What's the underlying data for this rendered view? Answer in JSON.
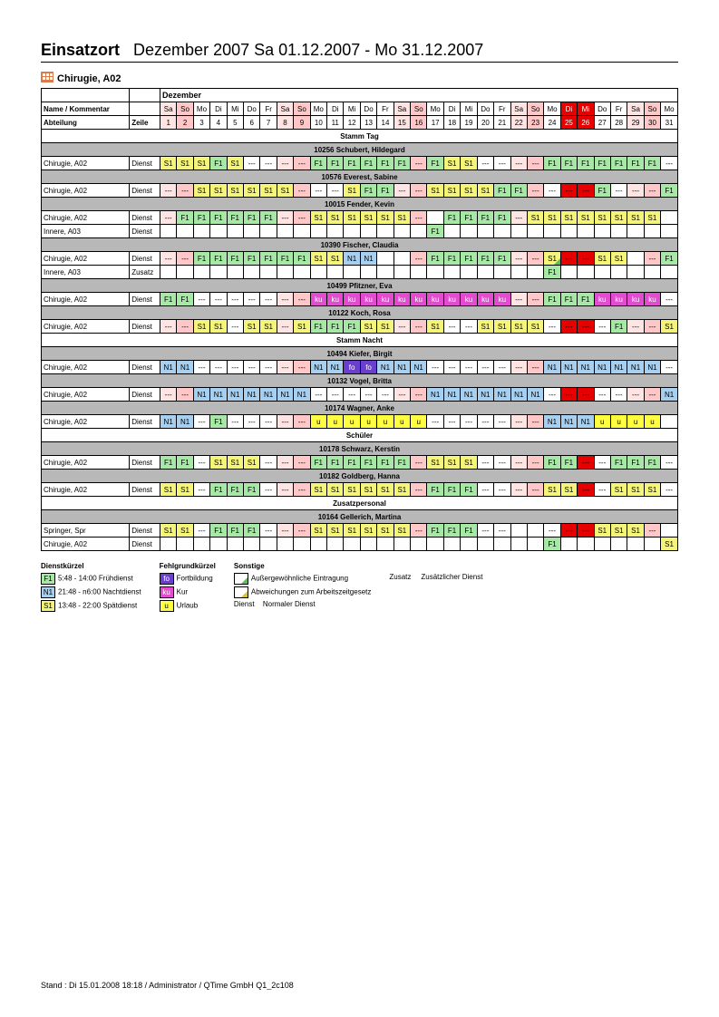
{
  "title_label": "Einsatzort",
  "title_period": "Dezember 2007    Sa 01.12.2007  -  Mo 31.12.2007",
  "department": "Chirugie, A02",
  "header": {
    "name": "Name / Kommentar",
    "abteilung": "Abteilung",
    "zeile": "Zeile",
    "month": "Dezember"
  },
  "days": [
    {
      "wd": "Sa",
      "n": "1",
      "bg": "#ffe4e4"
    },
    {
      "wd": "So",
      "n": "2",
      "bg": "#ffc7c7"
    },
    {
      "wd": "Mo",
      "n": "3",
      "bg": "#fff"
    },
    {
      "wd": "Di",
      "n": "4",
      "bg": "#fff"
    },
    {
      "wd": "Mi",
      "n": "5",
      "bg": "#fff"
    },
    {
      "wd": "Do",
      "n": "6",
      "bg": "#fff"
    },
    {
      "wd": "Fr",
      "n": "7",
      "bg": "#fff"
    },
    {
      "wd": "Sa",
      "n": "8",
      "bg": "#ffe4e4"
    },
    {
      "wd": "So",
      "n": "9",
      "bg": "#ffc7c7"
    },
    {
      "wd": "Mo",
      "n": "10",
      "bg": "#fff"
    },
    {
      "wd": "Di",
      "n": "11",
      "bg": "#fff"
    },
    {
      "wd": "Mi",
      "n": "12",
      "bg": "#fff"
    },
    {
      "wd": "Do",
      "n": "13",
      "bg": "#fff"
    },
    {
      "wd": "Fr",
      "n": "14",
      "bg": "#fff"
    },
    {
      "wd": "Sa",
      "n": "15",
      "bg": "#ffe4e4"
    },
    {
      "wd": "So",
      "n": "16",
      "bg": "#ffc7c7"
    },
    {
      "wd": "Mo",
      "n": "17",
      "bg": "#fff"
    },
    {
      "wd": "Di",
      "n": "18",
      "bg": "#fff"
    },
    {
      "wd": "Mi",
      "n": "19",
      "bg": "#fff"
    },
    {
      "wd": "Do",
      "n": "20",
      "bg": "#fff"
    },
    {
      "wd": "Fr",
      "n": "21",
      "bg": "#fff"
    },
    {
      "wd": "Sa",
      "n": "22",
      "bg": "#ffe4e4"
    },
    {
      "wd": "So",
      "n": "23",
      "bg": "#ffc7c7"
    },
    {
      "wd": "Mo",
      "n": "24",
      "bg": "#fff"
    },
    {
      "wd": "Di",
      "n": "25",
      "bg": "#e60000",
      "fg": "#fff"
    },
    {
      "wd": "Mi",
      "n": "26",
      "bg": "#e60000",
      "fg": "#fff"
    },
    {
      "wd": "Do",
      "n": "27",
      "bg": "#fff"
    },
    {
      "wd": "Fr",
      "n": "28",
      "bg": "#fff"
    },
    {
      "wd": "Sa",
      "n": "29",
      "bg": "#ffe4e4"
    },
    {
      "wd": "So",
      "n": "30",
      "bg": "#ffc7c7"
    },
    {
      "wd": "Mo",
      "n": "31",
      "bg": "#fff"
    }
  ],
  "codes": {
    "F1": {
      "bg": "#a7e8a7"
    },
    "S1": {
      "bg": "#f5f57a"
    },
    "N1": {
      "bg": "#a7cff0"
    },
    "ku": {
      "bg": "#e34bd0",
      "fg": "#fff"
    },
    "fo": {
      "bg": "#6a3fcf",
      "fg": "#fff"
    },
    "u": {
      "bg": "#ffff3f"
    },
    "---": {
      "bg": ""
    },
    "": {
      "bg": ""
    }
  },
  "sections": [
    {
      "title": "Stamm Tag",
      "people": [
        {
          "name": "10256 Schubert, Hildegard",
          "rows": [
            {
              "abt": "Chirugie, A02",
              "zeile": "Dienst",
              "cells": [
                "S1",
                "S1",
                "S1",
                "F1",
                "S1",
                "---",
                "---",
                "---",
                "---",
                "F1",
                "F1",
                "F1",
                "F1",
                "F1",
                "F1",
                "---",
                "F1",
                "S1",
                "S1",
                "---",
                "---",
                "---",
                "---",
                "F1",
                "F1",
                "F1",
                "F1",
                "F1",
                "F1",
                "F1",
                "---"
              ]
            }
          ]
        },
        {
          "name": "10576 Everest, Sabine",
          "rows": [
            {
              "abt": "Chirugie, A02",
              "zeile": "Dienst",
              "cells": [
                "---",
                "---",
                "S1",
                "S1",
                "S1",
                "S1",
                "S1",
                "S1",
                "---",
                "---",
                "---",
                "S1",
                "F1",
                "F1",
                "---",
                "---",
                "S1",
                "S1",
                "S1",
                "S1",
                "F1",
                "F1",
                "---",
                "---",
                "---",
                "---",
                "F1",
                "---",
                "---",
                "---",
                "F1"
              ]
            }
          ]
        },
        {
          "name": "10015 Fender, Kevin",
          "rows": [
            {
              "abt": "Chirugie, A02",
              "zeile": "Dienst",
              "cells": [
                "---",
                "F1",
                "F1",
                "F1",
                "F1",
                "F1",
                "F1",
                "---",
                "---",
                "S1",
                "S1",
                "S1",
                "S1",
                "S1",
                "S1",
                "---",
                "",
                "F1",
                "F1",
                "F1",
                "F1",
                "---",
                "S1",
                "S1",
                "S1",
                "S1",
                "S1",
                "S1",
                "S1",
                "S1",
                ""
              ]
            },
            {
              "abt": "Innere, A03",
              "zeile": "Dienst",
              "cells": [
                "",
                "",
                "",
                "",
                "",
                "",
                "",
                "",
                "",
                "",
                "",
                "",
                "",
                "",
                "",
                "",
                "F1",
                "",
                "",
                "",
                "",
                "",
                "",
                "",
                "",
                "",
                "",
                "",
                "",
                "",
                ""
              ]
            }
          ]
        },
        {
          "name": "10390 Fischer, Claudia",
          "rows": [
            {
              "abt": "Chirugie, A02",
              "zeile": "Dienst",
              "cells": [
                "---",
                "---",
                "F1",
                "F1",
                "F1",
                "F1",
                "F1",
                "F1",
                "F1",
                "S1",
                "S1",
                "N1",
                "N1",
                "",
                "",
                "---",
                "F1",
                "F1",
                "F1",
                "F1",
                "F1",
                "---",
                "---",
                "S1",
                "---",
                "---",
                "S1",
                "S1",
                "",
                "---",
                "F1"
              ],
              "tri": [
                23
              ]
            },
            {
              "abt": "Innere, A03",
              "zeile": "Zusatz",
              "cells": [
                "",
                "",
                "",
                "",
                "",
                "",
                "",
                "",
                "",
                "",
                "",
                "",
                "",
                "",
                "",
                "",
                "",
                "",
                "",
                "",
                "",
                "",
                "",
                "F1",
                "",
                "",
                "",
                "",
                "",
                "",
                ""
              ]
            }
          ]
        },
        {
          "name": "10499 Pfitzner, Eva",
          "rows": [
            {
              "abt": "Chirugie, A02",
              "zeile": "Dienst",
              "cells": [
                "F1",
                "F1",
                "---",
                "---",
                "---",
                "---",
                "---",
                "---",
                "---",
                "ku",
                "ku",
                "ku",
                "ku",
                "ku",
                "ku",
                "ku",
                "ku",
                "ku",
                "ku",
                "ku",
                "ku",
                "---",
                "---",
                "F1",
                "F1",
                "F1",
                "ku",
                "ku",
                "ku",
                "ku",
                "---"
              ]
            }
          ]
        },
        {
          "name": "10122 Koch, Rosa",
          "rows": [
            {
              "abt": "Chirugie, A02",
              "zeile": "Dienst",
              "cells": [
                "---",
                "---",
                "S1",
                "S1",
                "---",
                "S1",
                "S1",
                "---",
                "S1",
                "F1",
                "F1",
                "F1",
                "S1",
                "S1",
                "---",
                "---",
                "S1",
                "---",
                "---",
                "S1",
                "S1",
                "S1",
                "S1",
                "---",
                "---",
                "---",
                "---",
                "F1",
                "---",
                "---",
                "S1"
              ]
            }
          ]
        }
      ]
    },
    {
      "title": "Stamm Nacht",
      "people": [
        {
          "name": "10494 Kiefer, Birgit",
          "rows": [
            {
              "abt": "Chirugie, A02",
              "zeile": "Dienst",
              "cells": [
                "N1",
                "N1",
                "---",
                "---",
                "---",
                "---",
                "---",
                "---",
                "---",
                "N1",
                "N1",
                "fo",
                "fo",
                "N1",
                "N1",
                "N1",
                "---",
                "---",
                "---",
                "---",
                "---",
                "---",
                "---",
                "N1",
                "N1",
                "N1",
                "N1",
                "N1",
                "N1",
                "N1",
                "---"
              ]
            }
          ]
        },
        {
          "name": "10132 Vogel, Britta",
          "rows": [
            {
              "abt": "Chirugie, A02",
              "zeile": "Dienst",
              "cells": [
                "---",
                "---",
                "N1",
                "N1",
                "N1",
                "N1",
                "N1",
                "N1",
                "N1",
                "---",
                "---",
                "---",
                "---",
                "---",
                "---",
                "---",
                "N1",
                "N1",
                "N1",
                "N1",
                "N1",
                "N1",
                "N1",
                "---",
                "---",
                "---",
                "---",
                "---",
                "---",
                "---",
                "N1"
              ]
            }
          ]
        },
        {
          "name": "10174 Wagner, Anke",
          "rows": [
            {
              "abt": "Chirugie, A02",
              "zeile": "Dienst",
              "cells": [
                "N1",
                "N1",
                "---",
                "F1",
                "---",
                "---",
                "---",
                "---",
                "---",
                "u",
                "u",
                "u",
                "u",
                "u",
                "u",
                "u",
                "---",
                "---",
                "---",
                "---",
                "---",
                "---",
                "---",
                "N1",
                "N1",
                "N1",
                "u",
                "u",
                "u",
                "u",
                ""
              ]
            }
          ]
        }
      ]
    },
    {
      "title": "Schüler",
      "people": [
        {
          "name": "10178 Schwarz, Kerstin",
          "rows": [
            {
              "abt": "Chirugie, A02",
              "zeile": "Dienst",
              "cells": [
                "F1",
                "F1",
                "---",
                "S1",
                "S1",
                "S1",
                "---",
                "---",
                "---",
                "F1",
                "F1",
                "F1",
                "F1",
                "F1",
                "F1",
                "---",
                "S1",
                "S1",
                "S1",
                "---",
                "---",
                "---",
                "---",
                "F1",
                "F1",
                "---",
                "---",
                "F1",
                "F1",
                "F1",
                "---"
              ]
            }
          ]
        },
        {
          "name": "10182 Goldberg, Hanna",
          "rows": [
            {
              "abt": "Chirugie, A02",
              "zeile": "Dienst",
              "cells": [
                "S1",
                "S1",
                "---",
                "F1",
                "F1",
                "F1",
                "---",
                "---",
                "---",
                "S1",
                "S1",
                "S1",
                "S1",
                "S1",
                "S1",
                "---",
                "F1",
                "F1",
                "F1",
                "---",
                "---",
                "---",
                "---",
                "S1",
                "S1",
                "---",
                "---",
                "S1",
                "S1",
                "S1",
                "---"
              ]
            }
          ]
        }
      ]
    },
    {
      "title": "Zusatzpersonal",
      "people": [
        {
          "name": "10164 Gellerich, Martina",
          "rows": [
            {
              "abt": "Springer, Spr",
              "zeile": "Dienst",
              "cells": [
                "S1",
                "S1",
                "---",
                "F1",
                "F1",
                "F1",
                "---",
                "---",
                "---",
                "S1",
                "S1",
                "S1",
                "S1",
                "S1",
                "S1",
                "---",
                "F1",
                "F1",
                "F1",
                "---",
                "---",
                "",
                "",
                "---",
                "---",
                "---",
                "S1",
                "S1",
                "S1",
                "---",
                ""
              ]
            },
            {
              "abt": "Chirugie, A02",
              "zeile": "Dienst",
              "cells": [
                "",
                "",
                "",
                "",
                "",
                "",
                "",
                "",
                "",
                "",
                "",
                "",
                "",
                "",
                "",
                "",
                "",
                "",
                "",
                "",
                "",
                "",
                "",
                "F1",
                "",
                "",
                "",
                "",
                "",
                "",
                "S1"
              ]
            }
          ]
        }
      ]
    }
  ],
  "legend": {
    "dienst_title": "Dienstkürzel",
    "dienst": [
      {
        "code": "F1",
        "bg": "#a7e8a7",
        "text": "5:48 - 14:00 Frühdienst"
      },
      {
        "code": "N1",
        "bg": "#a7cff0",
        "text": "21:48 - n6:00 Nachtdienst"
      },
      {
        "code": "S1",
        "bg": "#f5f57a",
        "text": "13:48 - 22:00 Spätdienst"
      }
    ],
    "fehl_title": "Fehlgrundkürzel",
    "fehl": [
      {
        "code": "fo",
        "bg": "#6a3fcf",
        "fg": "#fff",
        "text": "Fortbildung"
      },
      {
        "code": "ku",
        "bg": "#e34bd0",
        "fg": "#fff",
        "text": "Kur"
      },
      {
        "code": "u",
        "bg": "#ffff3f",
        "text": "Urlaub"
      }
    ],
    "sonst_title": "Sonstige",
    "sonst": [
      {
        "sym": "tri-g",
        "text": "Außergewöhnliche Eintragung"
      },
      {
        "sym": "tri-y",
        "text": "Abweichungen zum Arbeitszeitgesetz"
      },
      {
        "label": "Dienst",
        "text": "Normaler Dienst"
      }
    ],
    "extra": [
      {
        "label": "Zusatz",
        "text": "Zusätzlicher Dienst"
      }
    ]
  },
  "footer": "Stand : Di 15.01.2008 18:18  /  Administrator  /  QTime GmbH  Q1_2c108"
}
